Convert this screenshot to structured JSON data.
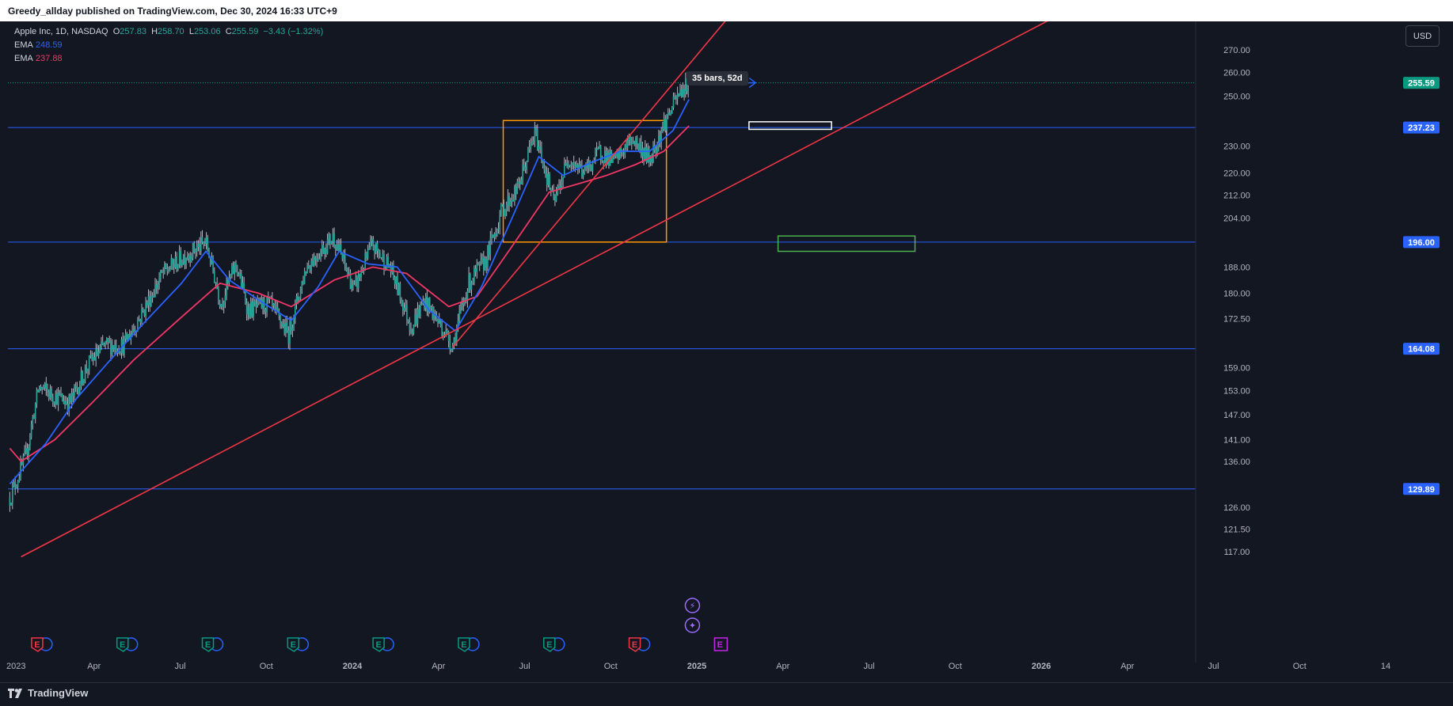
{
  "header": {
    "published": "Greedy_allday published on TradingView.com, Dec 30, 2024 16:33 UTC+9"
  },
  "legend": {
    "symbol": "Apple Inc, 1D, NASDAQ",
    "o_label": "O",
    "o": "257.83",
    "h_label": "H",
    "h": "258.70",
    "l_label": "L",
    "l": "253.06",
    "c_label": "C",
    "c": "255.59",
    "change": "−3.43 (−1.32%)",
    "ema1_label": "EMA",
    "ema1": "248.59",
    "ema2_label": "EMA",
    "ema2": "237.88"
  },
  "currency_button": "USD",
  "measure_label": "35 bars, 52d",
  "footer": {
    "brand": "TradingView"
  },
  "colors": {
    "background": "#131722",
    "ema_fast": "#2962ff",
    "ema_slow": "#f23665",
    "trendline": "#f23645",
    "hline": "#2962ff",
    "consolidation_box": "#ff9800",
    "target_box_white": "#ffffff",
    "target_box_green": "#4caf50",
    "last_price": "#089981"
  },
  "chart_data": {
    "type": "candlestick",
    "symbol": "AAPL",
    "timeframe": "1D",
    "price_axis_ticks": [
      117,
      121.5,
      126,
      136,
      141,
      147,
      153,
      159,
      172.5,
      180,
      188,
      204,
      212,
      220,
      230,
      250,
      260,
      270
    ],
    "price_axis_tick_labels": [
      "117.00",
      "121.50",
      "126.00",
      "136.00",
      "141.00",
      "147.00",
      "153.00",
      "159.00",
      "172.50",
      "180.00",
      "188.00",
      "204.00",
      "212.00",
      "220.00",
      "230.00",
      "250.00",
      "260.00",
      "270.00"
    ],
    "time_axis_labels": [
      "2023",
      "Apr",
      "Jul",
      "Oct",
      "2024",
      "Apr",
      "Jul",
      "Oct",
      "2025",
      "Apr",
      "Jul",
      "Oct",
      "2026",
      "Apr",
      "Jul",
      "Oct",
      "14"
    ],
    "time_axis_bold": [
      false,
      false,
      false,
      false,
      true,
      false,
      false,
      false,
      true,
      false,
      false,
      false,
      true,
      false,
      false,
      false,
      false
    ],
    "price_path": [
      [
        "2023-01-03",
        128
      ],
      [
        "2023-01-20",
        137
      ],
      [
        "2023-02-03",
        154
      ],
      [
        "2023-02-17",
        152
      ],
      [
        "2023-03-08",
        150
      ],
      [
        "2023-03-28",
        160
      ],
      [
        "2023-04-14",
        165
      ],
      [
        "2023-05-04",
        165
      ],
      [
        "2023-05-22",
        173
      ],
      [
        "2023-06-15",
        186
      ],
      [
        "2023-07-06",
        191
      ],
      [
        "2023-07-31",
        196
      ],
      [
        "2023-08-16",
        177
      ],
      [
        "2023-09-01",
        189
      ],
      [
        "2023-09-14",
        175
      ],
      [
        "2023-10-06",
        177
      ],
      [
        "2023-10-27",
        168
      ],
      [
        "2023-11-15",
        188
      ],
      [
        "2023-12-14",
        198
      ],
      [
        "2024-01-05",
        181
      ],
      [
        "2024-01-24",
        195
      ],
      [
        "2024-02-12",
        188
      ],
      [
        "2024-03-06",
        170
      ],
      [
        "2024-03-20",
        178
      ],
      [
        "2024-04-19",
        165
      ],
      [
        "2024-05-06",
        183
      ],
      [
        "2024-05-24",
        190
      ],
      [
        "2024-06-11",
        207
      ],
      [
        "2024-06-27",
        214
      ],
      [
        "2024-07-16",
        235
      ],
      [
        "2024-08-05",
        209
      ],
      [
        "2024-08-21",
        226
      ],
      [
        "2024-09-06",
        220
      ],
      [
        "2024-09-23",
        228
      ],
      [
        "2024-10-08",
        224
      ],
      [
        "2024-10-28",
        233
      ],
      [
        "2024-11-15",
        225
      ],
      [
        "2024-12-02",
        240
      ],
      [
        "2024-12-18",
        252
      ],
      [
        "2024-12-27",
        255.59
      ]
    ],
    "ema_fast": {
      "name": "EMA",
      "last": 248.59,
      "values": [
        [
          "2023-01-03",
          131
        ],
        [
          "2023-02-10",
          140
        ],
        [
          "2023-03-15",
          151
        ],
        [
          "2023-04-20",
          161
        ],
        [
          "2023-05-25",
          171
        ],
        [
          "2023-07-05",
          183
        ],
        [
          "2023-07-31",
          193
        ],
        [
          "2023-08-25",
          184
        ],
        [
          "2023-09-25",
          178
        ],
        [
          "2023-10-30",
          172
        ],
        [
          "2023-11-28",
          182
        ],
        [
          "2023-12-20",
          193
        ],
        [
          "2024-01-20",
          189
        ],
        [
          "2024-02-20",
          188
        ],
        [
          "2024-03-25",
          175
        ],
        [
          "2024-04-22",
          169
        ],
        [
          "2024-05-20",
          182
        ],
        [
          "2024-06-20",
          203
        ],
        [
          "2024-07-20",
          226
        ],
        [
          "2024-08-15",
          219
        ],
        [
          "2024-09-15",
          224
        ],
        [
          "2024-10-15",
          228
        ],
        [
          "2024-11-15",
          228
        ],
        [
          "2024-12-10",
          236
        ],
        [
          "2024-12-27",
          248.59
        ]
      ]
    },
    "ema_slow": {
      "name": "EMA",
      "last": 237.88,
      "values": [
        [
          "2023-01-03",
          139
        ],
        [
          "2023-01-15",
          136
        ],
        [
          "2023-02-20",
          141
        ],
        [
          "2023-04-01",
          150
        ],
        [
          "2023-05-15",
          161
        ],
        [
          "2023-07-01",
          172
        ],
        [
          "2023-08-15",
          183
        ],
        [
          "2023-09-25",
          180
        ],
        [
          "2023-10-30",
          176
        ],
        [
          "2023-12-15",
          184
        ],
        [
          "2024-01-25",
          188
        ],
        [
          "2024-03-01",
          186
        ],
        [
          "2024-04-15",
          176
        ],
        [
          "2024-05-15",
          179
        ],
        [
          "2024-06-20",
          194
        ],
        [
          "2024-07-31",
          213
        ],
        [
          "2024-08-31",
          216
        ],
        [
          "2024-09-30",
          219
        ],
        [
          "2024-10-31",
          223
        ],
        [
          "2024-11-30",
          228
        ],
        [
          "2024-12-27",
          237.88
        ]
      ]
    },
    "horizontal_lines": [
      237.23,
      196.0,
      164.08,
      129.89
    ],
    "price_labels": [
      {
        "value": 255.59,
        "text": "255.59",
        "kind": "last"
      },
      {
        "value": 237.23,
        "text": "237.23",
        "kind": "line"
      },
      {
        "value": 196.0,
        "text": "196.00",
        "kind": "line"
      },
      {
        "value": 164.08,
        "text": "164.08",
        "kind": "line"
      },
      {
        "value": 129.89,
        "text": "129.89",
        "kind": "line"
      }
    ],
    "trendlines": [
      {
        "from": [
          "2023-01-15",
          116
        ],
        "to": [
          "2026-02-15",
          291
        ]
      },
      {
        "from": [
          "2024-04-19",
          164.5
        ],
        "to": [
          "2025-02-20",
          292
        ]
      }
    ],
    "consolidation_box": {
      "from": "2024-06-12",
      "to": "2024-12-03",
      "low": 196,
      "high": 240
    },
    "measure_arrow": {
      "from": [
        "2024-12-27",
        255.59
      ],
      "to": [
        "2025-03-08",
        255.59
      ],
      "label": "35 bars, 52d"
    },
    "target_zones": [
      {
        "from": "2025-03-01",
        "to": "2025-05-28",
        "low": 236.5,
        "high": 239.5,
        "color": "white"
      },
      {
        "from": "2025-04-01",
        "to": "2025-08-25",
        "low": 193,
        "high": 198,
        "color": "green"
      }
    ],
    "event_markers": [
      {
        "date": "2023-02-02",
        "label": "E",
        "kind": "earnings-red"
      },
      {
        "date": "2023-05-04",
        "label": "E",
        "kind": "earnings-green"
      },
      {
        "date": "2023-08-03",
        "label": "E",
        "kind": "earnings-green"
      },
      {
        "date": "2023-11-02",
        "label": "E",
        "kind": "earnings-green"
      },
      {
        "date": "2024-02-01",
        "label": "E",
        "kind": "earnings-green"
      },
      {
        "date": "2024-05-02",
        "label": "E",
        "kind": "earnings-green"
      },
      {
        "date": "2024-08-01",
        "label": "E",
        "kind": "earnings-green"
      },
      {
        "date": "2024-10-31",
        "label": "E",
        "kind": "earnings-red"
      },
      {
        "date": "2024-12-29",
        "label": "✦",
        "kind": "event-purple"
      },
      {
        "date": "2024-12-29",
        "label": "⚡",
        "kind": "event-purple"
      },
      {
        "date": "2025-01-30",
        "label": "E",
        "kind": "earnings-purple"
      }
    ]
  }
}
